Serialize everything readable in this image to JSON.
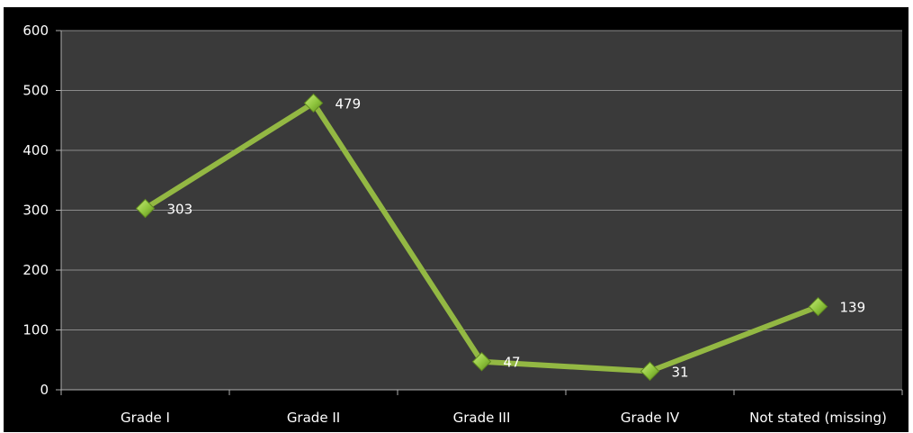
{
  "chart_data": {
    "type": "line",
    "categories": [
      "Grade I",
      "Grade II",
      "Grade III",
      "Grade IV",
      "Not stated (missing)"
    ],
    "series": [
      {
        "values": [
          303,
          479,
          47,
          31,
          139
        ]
      }
    ],
    "data_labels": [
      "303",
      "479",
      "47",
      "31",
      "139"
    ],
    "y_ticks": [
      "0",
      "100",
      "200",
      "300",
      "400",
      "500",
      "600"
    ],
    "ylim": [
      0,
      600
    ],
    "grid": true,
    "legend": "none",
    "colors": {
      "line": "#93b843",
      "marker": "#8ec43c",
      "marker_dark": "#5f8a1e",
      "plot_bg": "#3a3a3a",
      "frame_bg": "#000000",
      "grid": "#8a8a8a",
      "axis": "#b0b0b0",
      "text": "#ffffff"
    }
  }
}
